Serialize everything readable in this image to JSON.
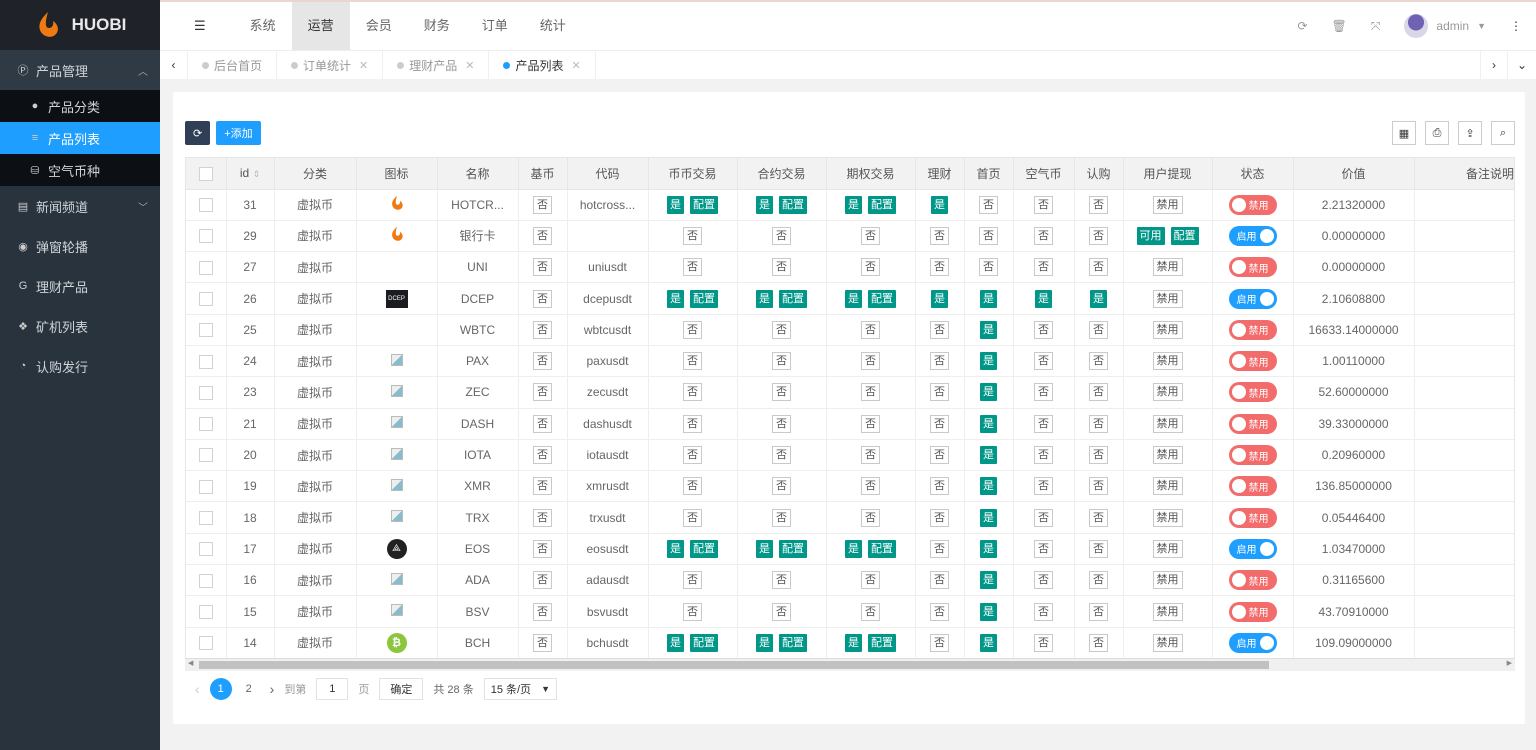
{
  "brand": "HUOBI",
  "sidebar": [
    {
      "label": "产品管理",
      "icon": "p-circle-icon",
      "open": true,
      "children": [
        {
          "label": "产品分类",
          "icon": "dot-icon"
        },
        {
          "label": "产品列表",
          "icon": "list-icon",
          "active": true
        },
        {
          "label": "空气币种",
          "icon": "coins-icon"
        }
      ]
    },
    {
      "label": "新闻频道",
      "icon": "newspaper-icon",
      "chevron": true
    },
    {
      "label": "弹窗轮播",
      "icon": "compass-icon"
    },
    {
      "label": "理财产品",
      "icon": "g-icon"
    },
    {
      "label": "矿机列表",
      "icon": "cubes-icon"
    },
    {
      "label": "认购发行",
      "icon": "pie-chart-icon"
    }
  ],
  "topmenu": [
    {
      "label": "系统"
    },
    {
      "label": "运营",
      "active": true
    },
    {
      "label": "会员"
    },
    {
      "label": "财务"
    },
    {
      "label": "订单"
    },
    {
      "label": "统计"
    }
  ],
  "user": {
    "name": "admin"
  },
  "tabs": [
    {
      "label": "后台首页",
      "closable": false
    },
    {
      "label": "订单统计",
      "closable": true
    },
    {
      "label": "理财产品",
      "closable": true
    },
    {
      "label": "产品列表",
      "closable": true,
      "active": true
    }
  ],
  "toolbar": {
    "add_label": "+添加"
  },
  "table": {
    "columns": [
      "",
      "id",
      "分类",
      "图标",
      "名称",
      "基币",
      "代码",
      "币币交易",
      "合约交易",
      "期权交易",
      "理财",
      "首页",
      "空气币",
      "认购",
      "用户提现",
      "状态",
      "价值",
      "备注说明"
    ],
    "labels": {
      "yes": "是",
      "no": "否",
      "config": "配置",
      "enabled": "启用",
      "disabled": "禁用",
      "available": "可用"
    },
    "rows": [
      {
        "id": "31",
        "cat": "虚拟币",
        "icon": "huobi",
        "name": "HOTCR...",
        "base": "否",
        "code": "hotcross...",
        "spot": true,
        "contract": true,
        "option": true,
        "fin": true,
        "home": false,
        "air": false,
        "sub": false,
        "withdraw": false,
        "status": false,
        "value": "2.21320000"
      },
      {
        "id": "29",
        "cat": "虚拟币",
        "icon": "huobi",
        "name": "银行卡",
        "base": "否",
        "code": "",
        "spot": false,
        "contract": false,
        "option": false,
        "fin": false,
        "home": false,
        "air": false,
        "sub": false,
        "withdraw": true,
        "status": true,
        "value": "0.00000000"
      },
      {
        "id": "27",
        "cat": "虚拟币",
        "icon": "",
        "name": "UNI",
        "base": "否",
        "code": "uniusdt",
        "spot": false,
        "contract": false,
        "option": false,
        "fin": false,
        "home": false,
        "air": false,
        "sub": false,
        "withdraw": false,
        "status": false,
        "value": "0.00000000"
      },
      {
        "id": "26",
        "cat": "虚拟币",
        "icon": "dcep",
        "name": "DCEP",
        "base": "否",
        "code": "dcepusdt",
        "spot": true,
        "contract": true,
        "option": true,
        "fin": true,
        "home": true,
        "air": true,
        "sub": true,
        "withdraw": false,
        "status": true,
        "value": "2.10608800"
      },
      {
        "id": "25",
        "cat": "虚拟币",
        "icon": "",
        "name": "WBTC",
        "base": "否",
        "code": "wbtcusdt",
        "spot": false,
        "contract": false,
        "option": false,
        "fin": false,
        "home": true,
        "air": false,
        "sub": false,
        "withdraw": false,
        "status": false,
        "value": "16633.14000000"
      },
      {
        "id": "24",
        "cat": "虚拟币",
        "icon": "broken",
        "name": "PAX",
        "base": "否",
        "code": "paxusdt",
        "spot": false,
        "contract": false,
        "option": false,
        "fin": false,
        "home": true,
        "air": false,
        "sub": false,
        "withdraw": false,
        "status": false,
        "value": "1.00110000"
      },
      {
        "id": "23",
        "cat": "虚拟币",
        "icon": "broken",
        "name": "ZEC",
        "base": "否",
        "code": "zecusdt",
        "spot": false,
        "contract": false,
        "option": false,
        "fin": false,
        "home": true,
        "air": false,
        "sub": false,
        "withdraw": false,
        "status": false,
        "value": "52.60000000"
      },
      {
        "id": "21",
        "cat": "虚拟币",
        "icon": "broken",
        "name": "DASH",
        "base": "否",
        "code": "dashusdt",
        "spot": false,
        "contract": false,
        "option": false,
        "fin": false,
        "home": true,
        "air": false,
        "sub": false,
        "withdraw": false,
        "status": false,
        "value": "39.33000000"
      },
      {
        "id": "20",
        "cat": "虚拟币",
        "icon": "broken",
        "name": "IOTA",
        "base": "否",
        "code": "iotausdt",
        "spot": false,
        "contract": false,
        "option": false,
        "fin": false,
        "home": true,
        "air": false,
        "sub": false,
        "withdraw": false,
        "status": false,
        "value": "0.20960000"
      },
      {
        "id": "19",
        "cat": "虚拟币",
        "icon": "broken",
        "name": "XMR",
        "base": "否",
        "code": "xmrusdt",
        "spot": false,
        "contract": false,
        "option": false,
        "fin": false,
        "home": true,
        "air": false,
        "sub": false,
        "withdraw": false,
        "status": false,
        "value": "136.85000000"
      },
      {
        "id": "18",
        "cat": "虚拟币",
        "icon": "broken",
        "name": "TRX",
        "base": "否",
        "code": "trxusdt",
        "spot": false,
        "contract": false,
        "option": false,
        "fin": false,
        "home": true,
        "air": false,
        "sub": false,
        "withdraw": false,
        "status": false,
        "value": "0.05446400"
      },
      {
        "id": "17",
        "cat": "虚拟币",
        "icon": "eos",
        "name": "EOS",
        "base": "否",
        "code": "eosusdt",
        "spot": true,
        "contract": true,
        "option": true,
        "fin": false,
        "home": true,
        "air": false,
        "sub": false,
        "withdraw": false,
        "status": true,
        "value": "1.03470000"
      },
      {
        "id": "16",
        "cat": "虚拟币",
        "icon": "broken",
        "name": "ADA",
        "base": "否",
        "code": "adausdt",
        "spot": false,
        "contract": false,
        "option": false,
        "fin": false,
        "home": true,
        "air": false,
        "sub": false,
        "withdraw": false,
        "status": false,
        "value": "0.31165600"
      },
      {
        "id": "15",
        "cat": "虚拟币",
        "icon": "broken",
        "name": "BSV",
        "base": "否",
        "code": "bsvusdt",
        "spot": false,
        "contract": false,
        "option": false,
        "fin": false,
        "home": true,
        "air": false,
        "sub": false,
        "withdraw": false,
        "status": false,
        "value": "43.70910000"
      },
      {
        "id": "14",
        "cat": "虚拟币",
        "icon": "bitcoin",
        "name": "BCH",
        "base": "否",
        "code": "bchusdt",
        "spot": true,
        "contract": true,
        "option": true,
        "fin": false,
        "home": true,
        "air": false,
        "sub": false,
        "withdraw": false,
        "status": true,
        "value": "109.09000000"
      }
    ]
  },
  "pager": {
    "pages": [
      "1",
      "2"
    ],
    "current": "1",
    "goto_label": "到第",
    "goto_value": "1",
    "page_unit": "页",
    "confirm": "确定",
    "total": "共 28 条",
    "page_size": "15 条/页"
  },
  "colors": {
    "accent": "#1e9fff",
    "green": "#009688",
    "red": "#f26c6c",
    "sidebar": "#28333e"
  }
}
